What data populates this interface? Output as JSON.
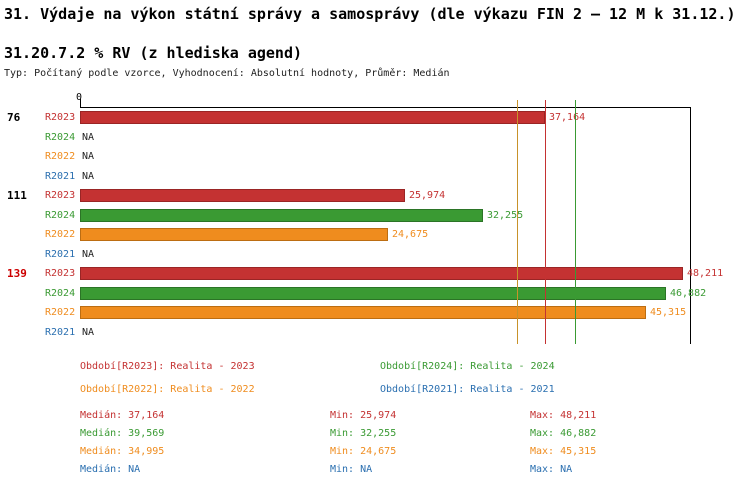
{
  "title": "31. Výdaje na výkon státní správy a samosprávy (dle výkazu FIN 2 – 12 M k 31.12.)",
  "subtitle": "31.20.7.2 % RV (z hlediska agend)",
  "meta": "Typ: Počítaný podle vzorce, Vyhodnocení: Absolutní hodnoty, Průměr: Medián",
  "colors": {
    "R2023": "#c43232",
    "R2024": "#3a9a33",
    "R2022": "#ef8c1e",
    "R2021": "#2a6fb0",
    "R2023_dark": "#9a2525",
    "R2024_dark": "#2b7426",
    "R2022_dark": "#bc6d12",
    "median_line_R2022": "#c8922a",
    "na_text": "#222222",
    "group_label": "#000000",
    "group_label_highlight": "#cc0000",
    "axis": "#000000"
  },
  "chart_data": {
    "type": "bar",
    "orientation": "horizontal",
    "title": "31.20.7.2 % RV (z hlediska agend)",
    "xlabel": "",
    "ylabel": "",
    "grid": false,
    "axis": {
      "min": 0,
      "max": 48800,
      "origin_label": "0"
    },
    "series_order": [
      "R2023",
      "R2024",
      "R2022",
      "R2021"
    ],
    "groups": [
      {
        "label": "76",
        "highlight": false,
        "bars": [
          {
            "series": "R2023",
            "value": 37164,
            "display": "37,164"
          },
          {
            "series": "R2024",
            "value": null,
            "display": "NA"
          },
          {
            "series": "R2022",
            "value": null,
            "display": "NA"
          },
          {
            "series": "R2021",
            "value": null,
            "display": "NA"
          }
        ]
      },
      {
        "label": "111",
        "highlight": false,
        "bars": [
          {
            "series": "R2023",
            "value": 25974,
            "display": "25,974"
          },
          {
            "series": "R2024",
            "value": 32255,
            "display": "32,255"
          },
          {
            "series": "R2022",
            "value": 24675,
            "display": "24,675"
          },
          {
            "series": "R2021",
            "value": null,
            "display": "NA"
          }
        ]
      },
      {
        "label": "139",
        "highlight": true,
        "bars": [
          {
            "series": "R2023",
            "value": 48211,
            "display": "48,211"
          },
          {
            "series": "R2024",
            "value": 46882,
            "display": "46,882"
          },
          {
            "series": "R2022",
            "value": 45315,
            "display": "45,315"
          },
          {
            "series": "R2021",
            "value": null,
            "display": "NA"
          }
        ]
      }
    ],
    "reference_lines": [
      {
        "series": "R2022",
        "value": 34995,
        "meaning": "median"
      },
      {
        "series": "R2023",
        "value": 37164,
        "meaning": "median"
      },
      {
        "series": "R2024",
        "value": 39569,
        "meaning": "median"
      }
    ],
    "legend": [
      {
        "series": "R2023",
        "label": "Období[R2023]: Realita - 2023"
      },
      {
        "series": "R2024",
        "label": "Období[R2024]: Realita - 2024"
      },
      {
        "series": "R2022",
        "label": "Období[R2022]: Realita - 2022"
      },
      {
        "series": "R2021",
        "label": "Období[R2021]: Realita - 2021"
      }
    ],
    "stats_labels": {
      "median": "Medián",
      "min": "Min",
      "max": "Max"
    },
    "stats": [
      {
        "series": "R2023",
        "median": 37164,
        "min": 25974,
        "max": 48211,
        "median_display": "37,164",
        "min_display": "25,974",
        "max_display": "48,211"
      },
      {
        "series": "R2024",
        "median": 39569,
        "min": 32255,
        "max": 46882,
        "median_display": "39,569",
        "min_display": "32,255",
        "max_display": "46,882"
      },
      {
        "series": "R2022",
        "median": 34995,
        "min": 24675,
        "max": 45315,
        "median_display": "34,995",
        "min_display": "24,675",
        "max_display": "45,315"
      },
      {
        "series": "R2021",
        "median": null,
        "min": null,
        "max": null,
        "median_display": "NA",
        "min_display": "NA",
        "max_display": "NA"
      }
    ]
  }
}
